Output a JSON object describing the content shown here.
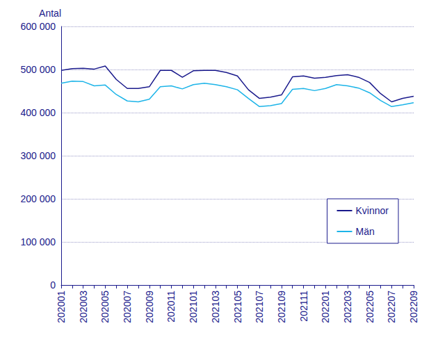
{
  "chart_data": {
    "type": "line",
    "y_label": "Antal",
    "categories": [
      "202001",
      null,
      "202003",
      null,
      "202005",
      null,
      "202007",
      null,
      "202009",
      null,
      "202011",
      null,
      "202101",
      null,
      "202103",
      null,
      "202105",
      null,
      "202107",
      null,
      "202109",
      null,
      "202111",
      null,
      "202201",
      null,
      "202203",
      null,
      "202205",
      null,
      "202207",
      null,
      "202209"
    ],
    "series": [
      {
        "name": "Kvinnor",
        "color": "#1a1a8c",
        "values": [
          498000,
          502000,
          503000,
          501000,
          508000,
          477000,
          456000,
          456000,
          460000,
          498000,
          498000,
          482000,
          497000,
          498000,
          498000,
          493000,
          485000,
          453000,
          433000,
          436000,
          441000,
          483000,
          485000,
          480000,
          482000,
          486000,
          488000,
          482000,
          470000,
          444000,
          425000,
          433000,
          438000
        ]
      },
      {
        "name": "Män",
        "color": "#1cb4e8",
        "values": [
          468000,
          473000,
          472000,
          462000,
          464000,
          442000,
          427000,
          425000,
          431000,
          460000,
          462000,
          455000,
          465000,
          468000,
          465000,
          460000,
          453000,
          433000,
          414000,
          416000,
          421000,
          454000,
          456000,
          451000,
          456000,
          465000,
          462000,
          457000,
          446000,
          428000,
          414000,
          418000,
          423000
        ]
      }
    ],
    "ylim": [
      0,
      600000
    ],
    "yticks": [
      0,
      {
        "value": 100000,
        "label": "100 000"
      },
      {
        "value": 200000,
        "label": "200 000"
      },
      {
        "value": 300000,
        "label": "300 000"
      },
      {
        "value": 400000,
        "label": "400 000"
      },
      {
        "value": 500000,
        "label": "500 000"
      },
      {
        "value": 600000,
        "label": "600 000"
      }
    ],
    "grid": true,
    "legend": "lower right"
  }
}
